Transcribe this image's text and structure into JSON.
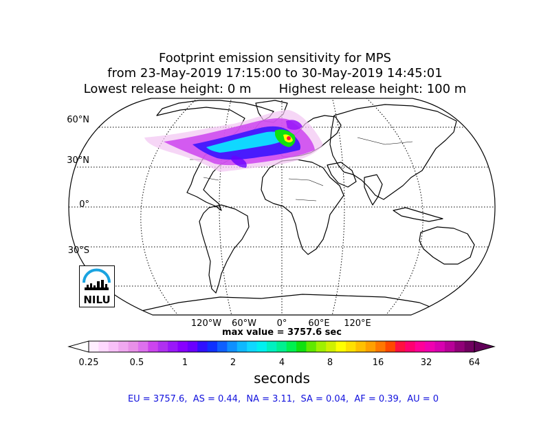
{
  "title": {
    "line1": "Footprint emission sensitivity for MPS",
    "line2": "from 23-May-2019 17:15:00 to 30-May-2019 14:45:01",
    "line3": "Lowest release height: 0 m       Highest release height: 100 m"
  },
  "map": {
    "projection": "robinson",
    "lat_labels": [
      "60°N",
      "30°N",
      "0°",
      "30°S"
    ],
    "lon_labels": [
      "120°W",
      "60°W",
      "0°",
      "60°E",
      "120°E"
    ],
    "ocean_color": "#ffffff",
    "coast_color": "#000000"
  },
  "max_value_text": "max value = 3757.6 sec",
  "colorbar": {
    "tick_labels": [
      "0.25",
      "0.5",
      "1",
      "2",
      "4",
      "8",
      "16",
      "32",
      "64"
    ],
    "label": "seconds",
    "colors": [
      "#ffeeff",
      "#ffd8ff",
      "#f8c0f8",
      "#f0a8f0",
      "#e890e8",
      "#dd70ee",
      "#cc44ee",
      "#b030f0",
      "#9a18f8",
      "#8800ff",
      "#6a00ff",
      "#3010ff",
      "#1030ff",
      "#1060ff",
      "#1090ff",
      "#10b8ff",
      "#10d8ff",
      "#00f0f0",
      "#00f0c0",
      "#00f090",
      "#00f050",
      "#10e010",
      "#60e800",
      "#a0f000",
      "#d0f000",
      "#ffff00",
      "#ffe000",
      "#ffc000",
      "#ffa000",
      "#ff7800",
      "#ff4800",
      "#ff1040",
      "#ff0070",
      "#ff0098",
      "#f000b0",
      "#d800b0",
      "#b80098",
      "#900078",
      "#700060"
    ],
    "under_color": "#ffffff",
    "over_color": "#600058"
  },
  "summary": "EU = 3757.6,  AS = 0.44,  NA = 3.11,  SA = 0.04,  AF = 0.39,  AU = 0",
  "logo": {
    "text": "NILU"
  }
}
